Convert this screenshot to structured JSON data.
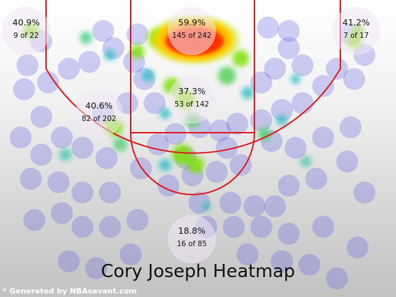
{
  "chart_data": {
    "type": "heatmap",
    "title": "Cory Joseph Heatmap",
    "zones": [
      {
        "id": "left-corner",
        "pct": "40.9%",
        "made_of": "9 of 22"
      },
      {
        "id": "restricted-area",
        "pct": "59.9%",
        "made_of": "145 of 242"
      },
      {
        "id": "right-corner",
        "pct": "41.2%",
        "made_of": "7 of 17"
      },
      {
        "id": "left-wing-midrange",
        "pct": "40.6%",
        "made_of": "82 of 202"
      },
      {
        "id": "paint",
        "pct": "37.3%",
        "made_of": "53 of 142"
      },
      {
        "id": "above-break-three",
        "pct": "18.8%",
        "made_of": "16 of 85"
      }
    ],
    "court_line_color": "#e0161b",
    "hot_color": "#ff2a00",
    "cool_color": "#5a5ae6"
  },
  "footer": {
    "credit": "* Generated by NBAsavant.com"
  }
}
